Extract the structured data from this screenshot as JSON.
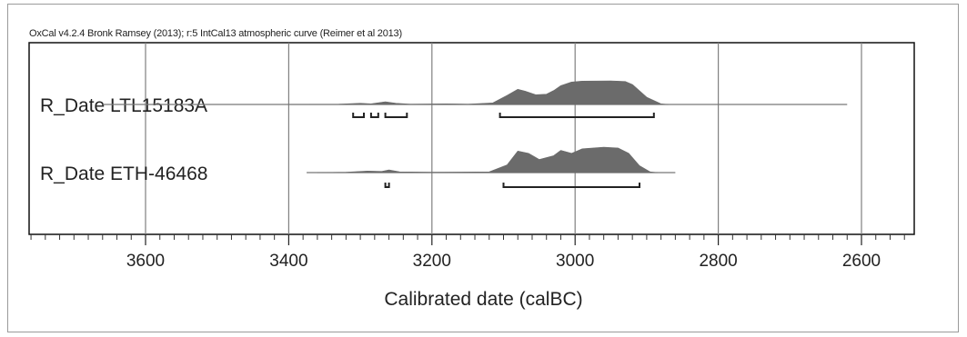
{
  "chart_data": {
    "type": "area",
    "title": "OxCal v4.2.4 Bronk Ramsey (2013); r:5 IntCal13 atmospheric curve (Reimer et al 2013)",
    "xlabel": "Calibrated date (calBC)",
    "xlim": [
      3760,
      2530
    ],
    "x_reversed": true,
    "xticks": [
      3600,
      3400,
      3200,
      3000,
      2800,
      2600
    ],
    "xtick_labels": [
      "3600",
      "3400",
      "3200",
      "3000",
      "2800",
      "2600"
    ],
    "grid": true,
    "series": [
      {
        "name": "R_Date LTL15183A",
        "line_range": [
          3660,
          2620
        ],
        "distribution": [
          [
            3400,
            0
          ],
          [
            3330,
            0.01
          ],
          [
            3300,
            0.04
          ],
          [
            3285,
            0.02
          ],
          [
            3265,
            0.09
          ],
          [
            3250,
            0.04
          ],
          [
            3230,
            0.01
          ],
          [
            3180,
            0.02
          ],
          [
            3150,
            0.01
          ],
          [
            3115,
            0.05
          ],
          [
            3095,
            0.3
          ],
          [
            3080,
            0.5
          ],
          [
            3070,
            0.44
          ],
          [
            3055,
            0.32
          ],
          [
            3040,
            0.34
          ],
          [
            3030,
            0.46
          ],
          [
            3020,
            0.62
          ],
          [
            3005,
            0.74
          ],
          [
            2990,
            0.77
          ],
          [
            2950,
            0.78
          ],
          [
            2930,
            0.76
          ],
          [
            2920,
            0.66
          ],
          [
            2900,
            0.24
          ],
          [
            2880,
            0.02
          ],
          [
            2870,
            0
          ]
        ],
        "ranges_95": [
          [
            3310,
            3295
          ],
          [
            3285,
            3275
          ],
          [
            3265,
            3235
          ],
          [
            3105,
            2890
          ]
        ]
      },
      {
        "name": "R_Date ETH-46468",
        "line_range": [
          3375,
          2860
        ],
        "distribution": [
          [
            3360,
            0
          ],
          [
            3320,
            0.01
          ],
          [
            3290,
            0.04
          ],
          [
            3270,
            0.03
          ],
          [
            3260,
            0.07
          ],
          [
            3245,
            0.02
          ],
          [
            3200,
            0.01
          ],
          [
            3120,
            0.02
          ],
          [
            3095,
            0.2
          ],
          [
            3080,
            0.56
          ],
          [
            3065,
            0.5
          ],
          [
            3050,
            0.34
          ],
          [
            3030,
            0.44
          ],
          [
            3020,
            0.58
          ],
          [
            3005,
            0.5
          ],
          [
            2990,
            0.62
          ],
          [
            2960,
            0.66
          ],
          [
            2940,
            0.64
          ],
          [
            2925,
            0.5
          ],
          [
            2910,
            0.18
          ],
          [
            2895,
            0.02
          ],
          [
            2885,
            0
          ]
        ],
        "ranges_95": [
          [
            3265,
            3260
          ],
          [
            3100,
            2910
          ]
        ]
      }
    ],
    "colors": {
      "fill": "#6b6b6b",
      "line": "#777777",
      "grid": "#808080",
      "bracket": "#222222"
    }
  }
}
